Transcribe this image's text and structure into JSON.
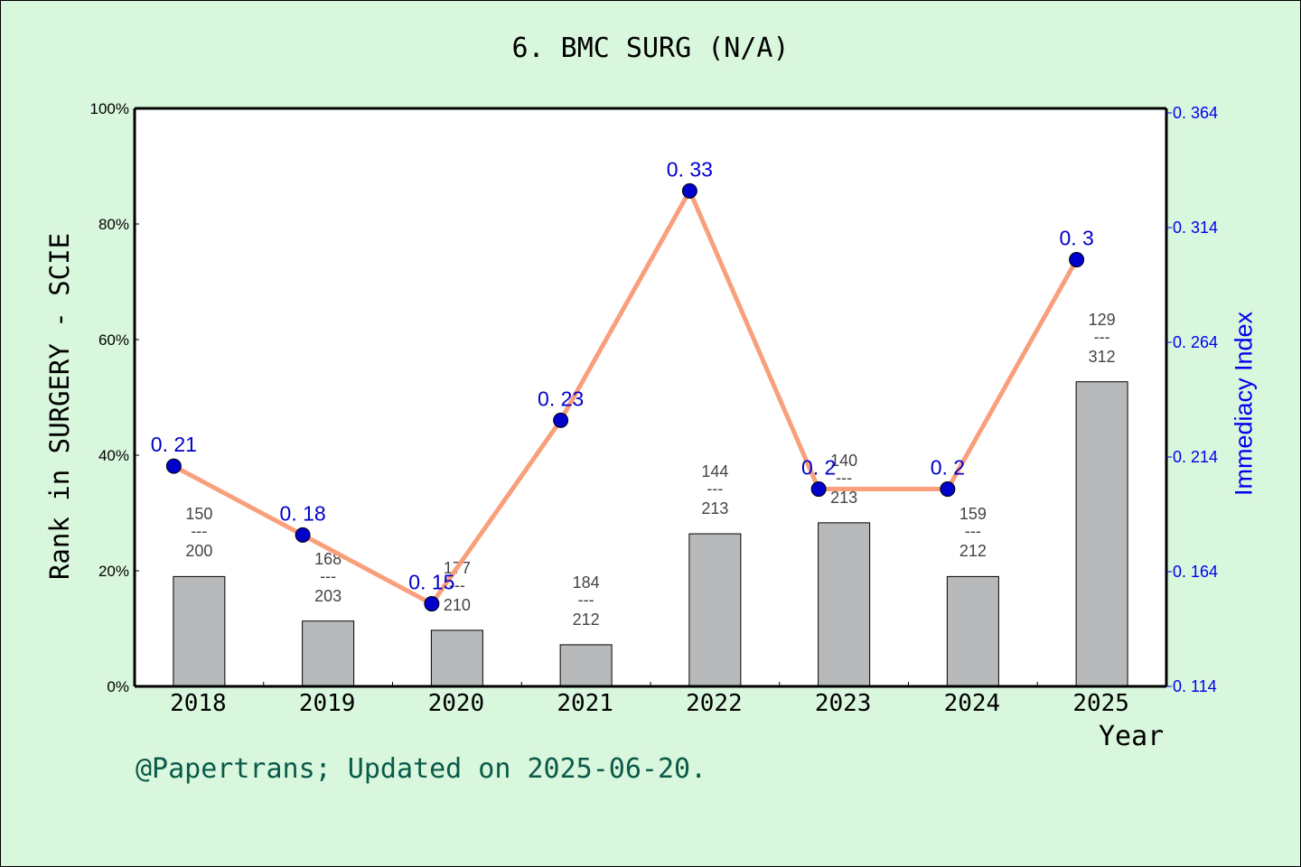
{
  "title": "6. BMC SURG (N/A)",
  "footer": "@Papertrans; Updated on 2025-06-20.",
  "colors": {
    "background": "#d9f7dc",
    "plot_bg": "#ffffff",
    "bar_fill": "#b8b9ba",
    "line": "#f99f7b",
    "marker": "#0000cc",
    "right_axis": "#0000ee",
    "footer": "#0a5a4a"
  },
  "chart_data": {
    "type": "bar+line",
    "title": "6. BMC SURG (N/A)",
    "xlabel": "Year",
    "ylabel": "Rank in SURGERY - SCIE",
    "y2label": "Immediacy Index",
    "categories": [
      "2018",
      "2019",
      "2020",
      "2021",
      "2022",
      "2023",
      "2024",
      "2025"
    ],
    "ylim": [
      0,
      100
    ],
    "yticks": [
      "0%",
      "20%",
      "40%",
      "60%",
      "80%",
      "100%"
    ],
    "y2lim": [
      0.114,
      0.364
    ],
    "y2ticks": [
      "0.114",
      "0.164",
      "0.214",
      "0.264",
      "0.314",
      "0.364"
    ],
    "grid": false,
    "legend": "none",
    "series": [
      {
        "name": "Rank in SURGERY - SCIE",
        "type": "bar",
        "axis": "left",
        "values": [
          19.0,
          11.3,
          9.7,
          7.2,
          26.4,
          28.3,
          19.0,
          52.7
        ],
        "labels": [
          {
            "rank": "150",
            "total": "200"
          },
          {
            "rank": "168",
            "total": "203"
          },
          {
            "rank": "177",
            "total": "210"
          },
          {
            "rank": "184",
            "total": "212"
          },
          {
            "rank": "144",
            "total": "213"
          },
          {
            "rank": "140",
            "total": "213"
          },
          {
            "rank": "159",
            "total": "212"
          },
          {
            "rank": "129",
            "total": "312"
          }
        ]
      },
      {
        "name": "Immediacy Index",
        "type": "line",
        "axis": "right",
        "values": [
          0.21,
          0.18,
          0.15,
          0.23,
          0.33,
          0.2,
          0.2,
          0.3
        ],
        "labels": [
          "0.21",
          "0.18",
          "0.15",
          "0.23",
          "0.33",
          "0.2",
          "0.2",
          "0.3"
        ]
      }
    ]
  }
}
